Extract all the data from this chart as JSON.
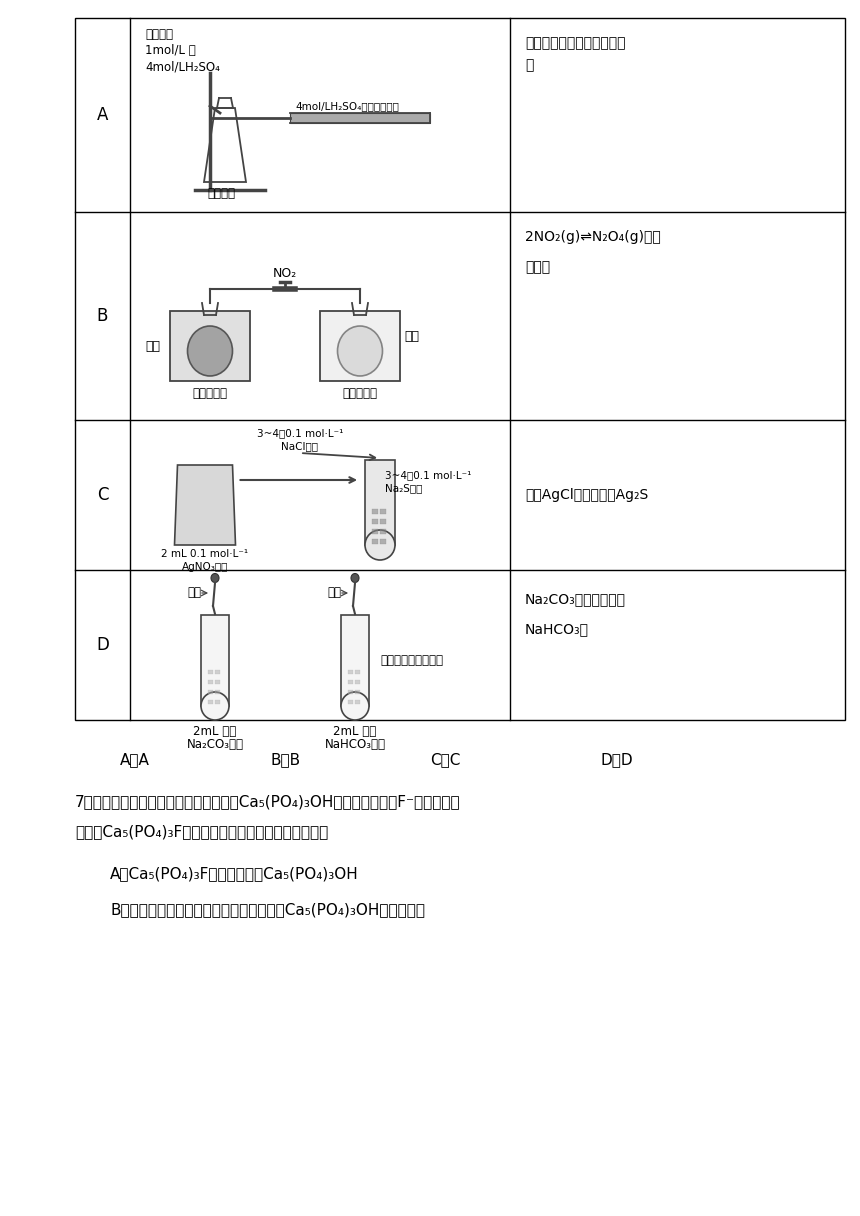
{
  "bg_color": "#ffffff",
  "table_border_color": "#000000",
  "text_color": "#000000",
  "fig_width": 8.6,
  "fig_height": 12.16,
  "row_labels": [
    "A",
    "B",
    "C",
    "D"
  ],
  "row_A_right_1": "反应物浓度越大反应速率越",
  "row_A_right_2": "快",
  "row_B_right_1": "2NO₂(g)⇌N₂O₄(g)为放",
  "row_B_right_2": "热反应",
  "row_C_right": "验证AgCl溶解度大于Ag₂S",
  "row_D_right_1": "Na₂CO₃的水解程度比",
  "row_D_right_2": "NaHCO₃强",
  "answer_A": "A．A",
  "answer_B": "B．B",
  "answer_C": "C．C",
  "answer_D": "D．D",
  "q7_line1": "7．牙齿表面釉质层的主要成分是难溶的Ca₅(PO₄)₃OH，含氟牙膏中的F⁻可将其自发",
  "q7_line2": "转化为Ca₅(PO₄)₃F，从而保护牙齿。下列说法错误的是",
  "q7_A": "A．Ca₅(PO₄)₃F的溶解度大于Ca₅(PO₄)₃OH",
  "q7_B": "B．食物在口腔中分解产生的有机酸会破坏Ca₅(PO₄)₃OH的溶解平衡"
}
